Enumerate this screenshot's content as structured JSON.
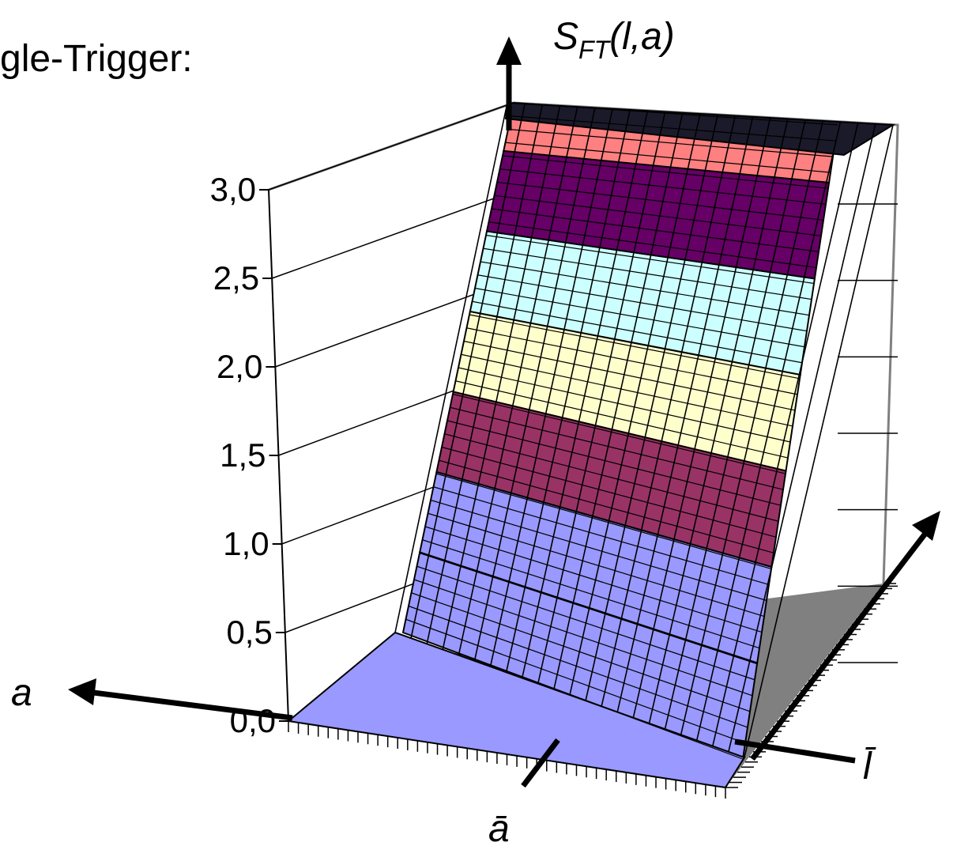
{
  "chart_data": {
    "type": "surface",
    "title_fragment": "gle-Trigger:",
    "zlabel": {
      "base": "S",
      "sub": "FT",
      "args": "(l,a)"
    },
    "axes": {
      "a": {
        "label": "a",
        "mark_label": "ā"
      },
      "l": {
        "label": "l",
        "mark_label": "l̄"
      }
    },
    "zlim": [
      0,
      3
    ],
    "z_ticks": [
      "0,0",
      "0,5",
      "1,0",
      "1,5",
      "2,0",
      "2,5",
      "3,0"
    ],
    "z_tick_values": [
      0,
      0.5,
      1.0,
      1.5,
      2.0,
      2.5,
      3.0
    ],
    "bands": [
      {
        "from": 0.0,
        "to": 0.5,
        "color": "#9999ff"
      },
      {
        "from": 0.5,
        "to": 1.0,
        "color": "#9999ff"
      },
      {
        "from": 1.0,
        "to": 1.5,
        "color": "#993366"
      },
      {
        "from": 1.5,
        "to": 2.0,
        "color": "#ffffcc"
      },
      {
        "from": 2.0,
        "to": 2.5,
        "color": "#ccffff"
      },
      {
        "from": 2.5,
        "to": 3.0,
        "color": "#660066"
      },
      {
        "from": 3.0,
        "to": 3.3,
        "color": "#ff8080"
      }
    ],
    "floor_color": "#808080",
    "grid": true
  }
}
